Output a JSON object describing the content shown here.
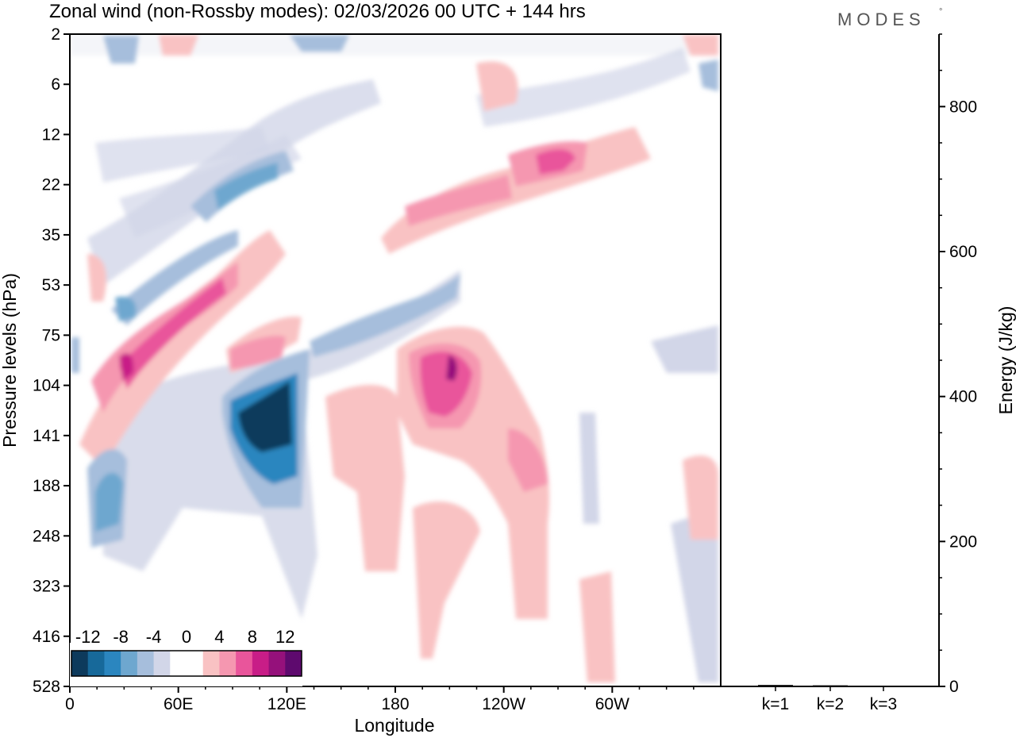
{
  "chart_data": {
    "type": "heatmap",
    "title": "Zonal wind (non-Rossby modes):  02/03/2026  00 UTC  + 144 hrs",
    "brand": "MODES",
    "brand_mark": "°",
    "xlabel": "Longitude",
    "ylabel": "Pressure levels (hPa)",
    "x_ticks": [
      "0",
      "60E",
      "120E",
      "180",
      "120W",
      "60W"
    ],
    "x_tick_values": [
      0,
      60,
      120,
      180,
      240,
      300
    ],
    "xlim": [
      0,
      360
    ],
    "y_levels": [
      "2",
      "6",
      "12",
      "22",
      "35",
      "53",
      "75",
      "104",
      "141",
      "188",
      "248",
      "323",
      "416",
      "528"
    ],
    "colorbar": {
      "tick_labels": [
        "-12",
        "-8",
        "-4",
        "0",
        "4",
        "8",
        "12"
      ],
      "colors": [
        "#0d3a5c",
        "#17699a",
        "#2b86bf",
        "#6ea7cf",
        "#a6bedc",
        "#d2d6e8",
        "#ffffff",
        "#ffffff",
        "#f9c2c3",
        "#f597b0",
        "#e9559b",
        "#c81d87",
        "#95117b",
        "#5e0a6e"
      ]
    },
    "features": [
      {
        "sign": "positive",
        "level": 12,
        "lon": 25,
        "p": 104
      },
      {
        "sign": "positive",
        "level": 10,
        "lon": 55,
        "p": 75
      },
      {
        "sign": "negative",
        "level": -14,
        "lon": 105,
        "p": 141
      },
      {
        "sign": "negative",
        "level": -8,
        "lon": 20,
        "p": 248
      },
      {
        "sign": "positive",
        "level": 12,
        "lon": 205,
        "p": 104
      },
      {
        "sign": "positive",
        "level": 8,
        "lon": 262,
        "p": 22
      },
      {
        "sign": "negative",
        "level": -8,
        "lon": 138,
        "p": 2
      }
    ],
    "energy_panel": {
      "ylabel": "Energy (J/kg)",
      "ylim": [
        0,
        900
      ],
      "y_ticks": [
        "0",
        "200",
        "400",
        "600",
        "800"
      ],
      "y_tick_values": [
        0,
        200,
        400,
        600,
        800
      ],
      "categories": [
        "k=1",
        "k=2",
        "k=3"
      ],
      "values": [
        2,
        1.5,
        1
      ]
    }
  }
}
